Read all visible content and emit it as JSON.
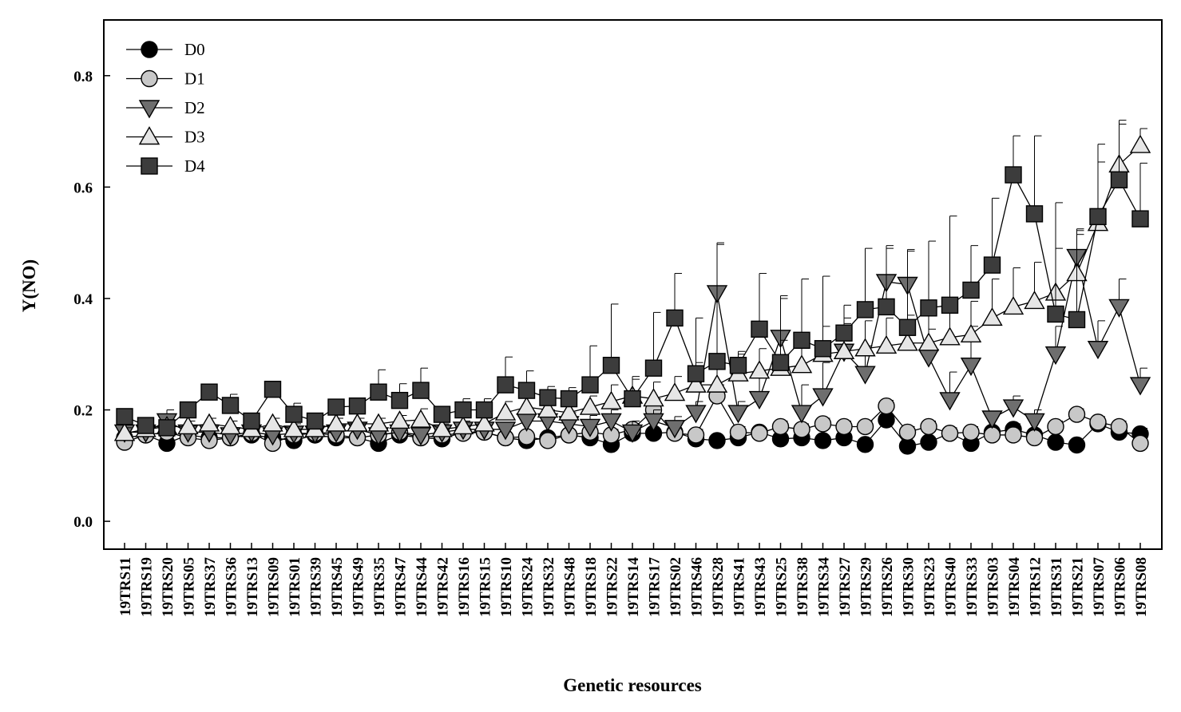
{
  "chart_data": {
    "type": "line",
    "title": "",
    "xlabel": "Genetic resources",
    "ylabel": "Y(NO)",
    "ylim": [
      -0.05,
      0.9
    ],
    "yticks": [
      "0.0",
      "0.2",
      "0.4",
      "0.6",
      "0.8"
    ],
    "grid": false,
    "legend_position": "top-left",
    "categories": [
      "19TRS11",
      "19TRS19",
      "19TRS20",
      "19TRS05",
      "19TRS37",
      "19TRS36",
      "19TRS13",
      "19TRS09",
      "19TRS01",
      "19TRS39",
      "19TRS45",
      "19TRS49",
      "19TRS35",
      "19TRS47",
      "19TRS44",
      "19TRS42",
      "19TRS16",
      "19TRS15",
      "19TRS10",
      "19TRS24",
      "19TRS32",
      "19TRS48",
      "19TRS18",
      "19TRS22",
      "19TRS14",
      "19TRS17",
      "19TRS02",
      "19TRS46",
      "19TRS28",
      "19TRS41",
      "19TRS43",
      "19TRS25",
      "19TRS38",
      "19TRS34",
      "19TRS27",
      "19TRS29",
      "19TRS26",
      "19TRS30",
      "19TRS23",
      "19TRS40",
      "19TRS33",
      "19TRS03",
      "19TRS04",
      "19TRS12",
      "19TRS31",
      "19TRS21",
      "19TRS07",
      "19TRS06",
      "19TRS08"
    ],
    "series": [
      {
        "name": "D0",
        "marker": "circle",
        "color": "#000000",
        "values": [
          0.15,
          0.155,
          0.14,
          0.155,
          0.15,
          0.15,
          0.155,
          0.15,
          0.145,
          0.155,
          0.15,
          0.15,
          0.14,
          0.155,
          0.15,
          0.148,
          0.16,
          0.16,
          0.15,
          0.145,
          0.15,
          0.155,
          0.15,
          0.138,
          0.158,
          0.158,
          0.16,
          0.148,
          0.145,
          0.15,
          0.16,
          0.148,
          0.15,
          0.145,
          0.15,
          0.138,
          0.182,
          0.135,
          0.142,
          0.158,
          0.14,
          0.16,
          0.165,
          0.155,
          0.142,
          0.137,
          0.175,
          0.16,
          0.157
        ],
        "errors": [
          0.005,
          0.005,
          0.005,
          0.005,
          0.005,
          0.005,
          0.005,
          0.005,
          0.005,
          0.005,
          0.005,
          0.005,
          0.005,
          0.005,
          0.005,
          0.005,
          0.005,
          0.005,
          0.005,
          0.005,
          0.005,
          0.005,
          0.005,
          0.005,
          0.005,
          0.005,
          0.005,
          0.005,
          0.005,
          0.005,
          0.005,
          0.005,
          0.005,
          0.005,
          0.005,
          0.005,
          0.01,
          0.005,
          0.005,
          0.005,
          0.005,
          0.005,
          0.01,
          0.005,
          0.005,
          0.005,
          0.01,
          0.01,
          0.01
        ]
      },
      {
        "name": "D1",
        "marker": "circle",
        "color": "#c8c8c8",
        "values": [
          0.142,
          0.155,
          0.16,
          0.15,
          0.145,
          0.15,
          0.158,
          0.14,
          0.155,
          0.158,
          0.155,
          0.15,
          0.155,
          0.16,
          0.15,
          0.155,
          0.158,
          0.16,
          0.15,
          0.152,
          0.145,
          0.155,
          0.16,
          0.155,
          0.165,
          0.2,
          0.158,
          0.155,
          0.225,
          0.16,
          0.158,
          0.17,
          0.165,
          0.175,
          0.17,
          0.17,
          0.207,
          0.16,
          0.17,
          0.158,
          0.16,
          0.155,
          0.155,
          0.15,
          0.17,
          0.192,
          0.178,
          0.17,
          0.14
        ],
        "errors": [
          0.01,
          0.005,
          0.005,
          0.005,
          0.005,
          0.005,
          0.005,
          0.005,
          0.005,
          0.005,
          0.005,
          0.005,
          0.005,
          0.005,
          0.005,
          0.005,
          0.005,
          0.005,
          0.005,
          0.005,
          0.005,
          0.005,
          0.01,
          0.01,
          0.01,
          0.02,
          0.01,
          0.01,
          0.02,
          0.01,
          0.01,
          0.01,
          0.01,
          0.01,
          0.01,
          0.01,
          0.01,
          0.01,
          0.01,
          0.01,
          0.01,
          0.01,
          0.01,
          0.01,
          0.01,
          0.01,
          0.01,
          0.01,
          0.01
        ]
      },
      {
        "name": "D2",
        "marker": "triangle-down",
        "color": "#6e6e6e",
        "values": [
          0.16,
          0.16,
          0.18,
          0.16,
          0.16,
          0.155,
          0.16,
          0.155,
          0.158,
          0.158,
          0.16,
          0.165,
          0.155,
          0.16,
          0.155,
          0.16,
          0.165,
          0.165,
          0.165,
          0.18,
          0.18,
          0.175,
          0.17,
          0.18,
          0.16,
          0.18,
          0.168,
          0.195,
          0.41,
          0.195,
          0.22,
          0.33,
          0.195,
          0.225,
          0.305,
          0.265,
          0.43,
          0.425,
          0.295,
          0.218,
          0.28,
          0.185,
          0.205,
          0.18,
          0.3,
          0.475,
          0.31,
          0.385,
          0.245
        ],
        "errors": [
          0.01,
          0.01,
          0.02,
          0.01,
          0.01,
          0.01,
          0.01,
          0.01,
          0.01,
          0.01,
          0.01,
          0.01,
          0.01,
          0.01,
          0.01,
          0.01,
          0.01,
          0.01,
          0.01,
          0.02,
          0.02,
          0.02,
          0.02,
          0.02,
          0.02,
          0.02,
          0.02,
          0.02,
          0.09,
          0.02,
          0.04,
          0.07,
          0.05,
          0.06,
          0.06,
          0.05,
          0.06,
          0.06,
          0.05,
          0.05,
          0.07,
          0.01,
          0.02,
          0.02,
          0.05,
          0.04,
          0.05,
          0.05,
          0.03
        ]
      },
      {
        "name": "D3",
        "marker": "triangle-up",
        "color": "#e6e6e6",
        "values": [
          0.158,
          0.165,
          0.17,
          0.17,
          0.175,
          0.17,
          0.165,
          0.175,
          0.165,
          0.165,
          0.175,
          0.175,
          0.175,
          0.18,
          0.182,
          0.165,
          0.17,
          0.175,
          0.195,
          0.205,
          0.2,
          0.195,
          0.205,
          0.215,
          0.225,
          0.22,
          0.23,
          0.245,
          0.245,
          0.265,
          0.27,
          0.275,
          0.28,
          0.3,
          0.305,
          0.31,
          0.315,
          0.32,
          0.32,
          0.33,
          0.335,
          0.365,
          0.385,
          0.395,
          0.41,
          0.445,
          0.535,
          0.64,
          0.675
        ],
        "errors": [
          0.01,
          0.01,
          0.01,
          0.01,
          0.01,
          0.01,
          0.01,
          0.01,
          0.01,
          0.01,
          0.01,
          0.01,
          0.01,
          0.01,
          0.02,
          0.01,
          0.01,
          0.01,
          0.02,
          0.02,
          0.02,
          0.02,
          0.02,
          0.03,
          0.03,
          0.03,
          0.03,
          0.04,
          0.04,
          0.04,
          0.04,
          0.05,
          0.05,
          0.05,
          0.05,
          0.05,
          0.05,
          0.05,
          0.06,
          0.06,
          0.06,
          0.07,
          0.07,
          0.07,
          0.08,
          0.08,
          0.11,
          0.08,
          0.03
        ]
      },
      {
        "name": "D4",
        "marker": "square",
        "color": "#3c3c3c",
        "values": [
          0.188,
          0.172,
          0.168,
          0.2,
          0.232,
          0.208,
          0.18,
          0.237,
          0.192,
          0.18,
          0.205,
          0.207,
          0.232,
          0.217,
          0.235,
          0.192,
          0.2,
          0.2,
          0.245,
          0.235,
          0.222,
          0.22,
          0.245,
          0.28,
          0.22,
          0.275,
          0.365,
          0.265,
          0.287,
          0.28,
          0.345,
          0.285,
          0.325,
          0.31,
          0.338,
          0.38,
          0.385,
          0.348,
          0.383,
          0.388,
          0.415,
          0.46,
          0.622,
          0.552,
          0.372,
          0.362,
          0.547,
          0.613,
          0.543
        ],
        "errors": [
          0.01,
          0.01,
          0.01,
          0.01,
          0.01,
          0.02,
          0.01,
          0.01,
          0.02,
          0.01,
          0.01,
          0.01,
          0.04,
          0.03,
          0.04,
          0.01,
          0.02,
          0.02,
          0.05,
          0.035,
          0.02,
          0.02,
          0.07,
          0.11,
          0.04,
          0.1,
          0.08,
          0.1,
          0.21,
          0.02,
          0.1,
          0.12,
          0.11,
          0.13,
          0.05,
          0.11,
          0.11,
          0.14,
          0.12,
          0.16,
          0.08,
          0.12,
          0.07,
          0.14,
          0.2,
          0.16,
          0.13,
          0.1,
          0.1
        ]
      }
    ]
  }
}
